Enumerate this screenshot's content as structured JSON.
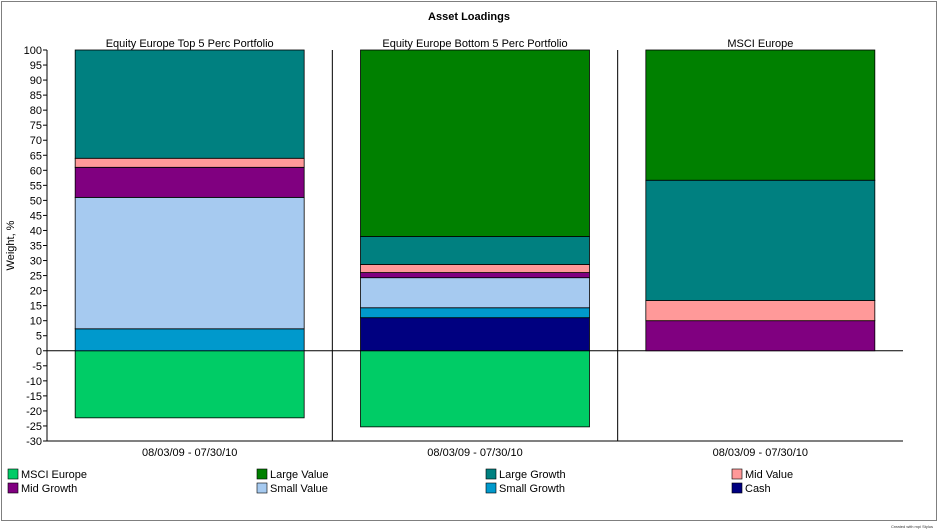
{
  "chart_data": {
    "type": "bar",
    "title": "Asset Loadings",
    "ylabel": "Weight, %",
    "ylim": [
      -30,
      100
    ],
    "ytick_step": 5,
    "grid": false,
    "legend_position": "bottom",
    "panels": [
      {
        "name": "Equity Europe Top 5 Perc Portfolio",
        "period": "08/03/09 - 07/30/10",
        "stack": [
          {
            "series": "MSCI Europe",
            "value": -22.3
          },
          {
            "series": "Small Growth",
            "value": 7.3
          },
          {
            "series": "Small Value",
            "value": 43.7
          },
          {
            "series": "Mid Growth",
            "value": 10.0
          },
          {
            "series": "Mid Value",
            "value": 3.0
          },
          {
            "series": "Large Growth",
            "value": 36.0
          }
        ]
      },
      {
        "name": "Equity Europe Bottom 5 Perc Portfolio",
        "period": "08/03/09 - 07/30/10",
        "stack": [
          {
            "series": "MSCI Europe",
            "value": -25.3
          },
          {
            "series": "Cash",
            "value": 11.0
          },
          {
            "series": "Small Growth",
            "value": 3.3
          },
          {
            "series": "Small Value",
            "value": 10.0
          },
          {
            "series": "Mid Growth",
            "value": 1.7
          },
          {
            "series": "Mid Value",
            "value": 2.7
          },
          {
            "series": "Large Growth",
            "value": 9.3
          },
          {
            "series": "Large Value",
            "value": 62.0
          }
        ]
      },
      {
        "name": "MSCI Europe",
        "period": "08/03/09 - 07/30/10",
        "stack": [
          {
            "series": "Mid Growth",
            "value": 10.0
          },
          {
            "series": "Mid Value",
            "value": 6.7
          },
          {
            "series": "Large Growth",
            "value": 40.0
          },
          {
            "series": "Large Value",
            "value": 43.3
          }
        ]
      }
    ],
    "legend": [
      {
        "name": "MSCI Europe",
        "color": "#00cc66"
      },
      {
        "name": "Large Value",
        "color": "#008000"
      },
      {
        "name": "Large Growth",
        "color": "#008080"
      },
      {
        "name": "Mid Value",
        "color": "#ff9999"
      },
      {
        "name": "Mid Growth",
        "color": "#800080"
      },
      {
        "name": "Small Value",
        "color": "#a6caf0"
      },
      {
        "name": "Small Growth",
        "color": "#0099cc"
      },
      {
        "name": "Cash",
        "color": "#000080"
      }
    ]
  },
  "footer": {
    "credit": "Created with mpi Stylus"
  }
}
